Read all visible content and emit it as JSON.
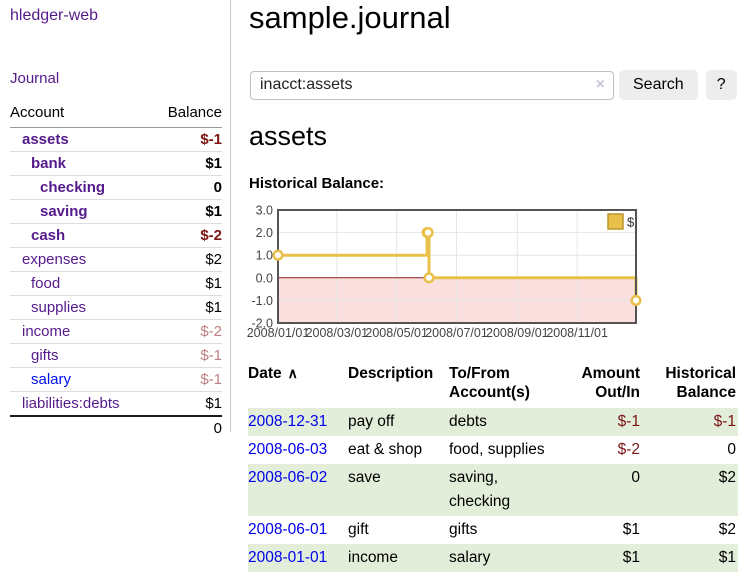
{
  "app_title": "hledger-web",
  "sidebar": {
    "journal_link": "Journal",
    "accounts_table": {
      "header": {
        "account": "Account",
        "balance": "Balance"
      },
      "rows": [
        {
          "account": "assets",
          "balance": "$-1",
          "indent": 0,
          "bold": true,
          "balance_class": "neg",
          "link_class": "purple"
        },
        {
          "account": "bank",
          "balance": "$1",
          "indent": 1,
          "bold": true,
          "balance_class": "",
          "link_class": "purple"
        },
        {
          "account": "checking",
          "balance": "0",
          "indent": 2,
          "bold": true,
          "balance_class": "",
          "link_class": "purple"
        },
        {
          "account": "saving",
          "balance": "$1",
          "indent": 2,
          "bold": true,
          "balance_class": "",
          "link_class": "purple"
        },
        {
          "account": "cash",
          "balance": "$-2",
          "indent": 1,
          "bold": true,
          "balance_class": "neg",
          "link_class": "purple"
        },
        {
          "account": "expenses",
          "balance": "$2",
          "indent": 0,
          "bold": false,
          "balance_class": "",
          "link_class": "purple"
        },
        {
          "account": "food",
          "balance": "$1",
          "indent": 1,
          "bold": false,
          "balance_class": "",
          "link_class": "purple"
        },
        {
          "account": "supplies",
          "balance": "$1",
          "indent": 1,
          "bold": false,
          "balance_class": "",
          "link_class": "purple"
        },
        {
          "account": "income",
          "balance": "$-2",
          "indent": 0,
          "bold": false,
          "balance_class": "neg-soft",
          "link_class": "purple"
        },
        {
          "account": "gifts",
          "balance": "$-1",
          "indent": 1,
          "bold": false,
          "balance_class": "neg-soft",
          "link_class": "purple"
        },
        {
          "account": "salary",
          "balance": "$-1",
          "indent": 1,
          "bold": false,
          "balance_class": "neg-soft",
          "link_class": "blue"
        },
        {
          "account": "liabilities:debts",
          "balance": "$1",
          "indent": 0,
          "bold": false,
          "balance_class": "",
          "link_class": "purple"
        }
      ],
      "total": "0"
    }
  },
  "main": {
    "title": "sample.journal",
    "search": {
      "value": "inacct:assets",
      "clear_icon": "×",
      "search_button": "Search",
      "help_button": "?"
    },
    "account_heading": "assets",
    "chart_heading": "Historical Balance:"
  },
  "chart_data": {
    "type": "line",
    "style": "step-after line with circular markers; region below zero shaded",
    "title": "Historical Balance:",
    "legend": {
      "label": "$",
      "position": "top-right"
    },
    "x_range": [
      "2008-01-01",
      "2008-12-31"
    ],
    "x_tick_labels": [
      "2008/01/01",
      "2008/03/01",
      "2008/05/01",
      "2008/07/01",
      "2008/09/01",
      "2008/11/01"
    ],
    "y_tick_labels": [
      "3.0",
      "2.0",
      "1.0",
      "0.0",
      "-1.0",
      "-2.0"
    ],
    "ylim": [
      -2,
      3
    ],
    "grid": true,
    "series": [
      {
        "name": "$",
        "color": "#e8c04a",
        "points": [
          {
            "x": "2008-01-01",
            "y": 1
          },
          {
            "x": "2008-06-01",
            "y": 2
          },
          {
            "x": "2008-06-02",
            "y": 2
          },
          {
            "x": "2008-06-03",
            "y": 0
          },
          {
            "x": "2008-12-31",
            "y": -1
          }
        ]
      }
    ],
    "zero_line_color": "#8b1d1d",
    "negative_region_fill": "#fbdede",
    "grid_color": "#e6e6e6",
    "border_color": "#545454",
    "tick_label_color": "#444444"
  },
  "register": {
    "headers": [
      {
        "line1": "Date",
        "line2": "",
        "sort_icon": "∧",
        "align": "left"
      },
      {
        "line1": "Description",
        "line2": "",
        "sort_icon": "",
        "align": "left"
      },
      {
        "line1": "To/From",
        "line2": "Account(s)",
        "sort_icon": "",
        "align": "left"
      },
      {
        "line1": "Amount",
        "line2": "Out/In",
        "sort_icon": "",
        "align": "right"
      },
      {
        "line1": "Historical",
        "line2": "Balance",
        "sort_icon": "",
        "align": "right"
      }
    ],
    "rows": [
      {
        "date": "2008-12-31",
        "description": "pay off",
        "accounts": "debts",
        "amount": "$-1",
        "amount_class": "neg",
        "balance": "$-1",
        "balance_class": "neg"
      },
      {
        "date": "2008-06-03",
        "description": "eat & shop",
        "accounts": "food, supplies",
        "amount": "$-2",
        "amount_class": "neg",
        "balance": "0",
        "balance_class": ""
      },
      {
        "date": "2008-06-02",
        "description": "save",
        "accounts": "saving, checking",
        "amount": "0",
        "amount_class": "",
        "balance": "$2",
        "balance_class": ""
      },
      {
        "date": "2008-06-01",
        "description": "gift",
        "accounts": "gifts",
        "amount": "$1",
        "amount_class": "",
        "balance": "$2",
        "balance_class": ""
      },
      {
        "date": "2008-01-01",
        "description": "income",
        "accounts": "salary",
        "amount": "$1",
        "amount_class": "",
        "balance": "$1",
        "balance_class": ""
      }
    ]
  },
  "colors": {
    "link_purple": "#551a8b",
    "link_blue": "#0012ee",
    "date_link_blue": "#0000ee",
    "negative_strong": "#7d1414",
    "negative_soft": "#bf8080",
    "row_green": "#e2eeda",
    "chart_gold": "#e8c04a",
    "chart_border": "#545454",
    "sidebar_divider": "#c9c9c9"
  }
}
